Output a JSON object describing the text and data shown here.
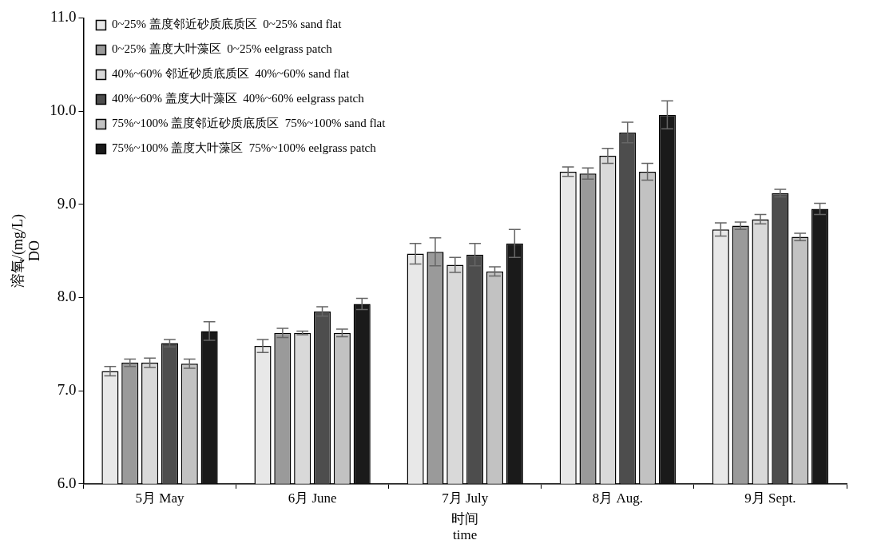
{
  "chart_data": {
    "type": "bar",
    "xlabel": "时间\ntime",
    "ylabel": "溶氧/(mg/L)\nDO",
    "categories": [
      "5月 May",
      "6月 June",
      "7月 July",
      "8月 Aug.",
      "9月 Sept."
    ],
    "ylim": [
      6,
      11
    ],
    "yticks": [
      {
        "value": 6,
        "label": "6.0"
      },
      {
        "value": 7,
        "label": "7.0"
      },
      {
        "value": 8,
        "label": "8.0"
      },
      {
        "value": 9,
        "label": "9.0"
      },
      {
        "value": 10,
        "label": "10.0"
      },
      {
        "value": 11,
        "label": "11.0"
      }
    ],
    "grid": false,
    "legend": "top left",
    "series": [
      {
        "name": "0~25% 盖度邻近砂质底质区  0~25% sand flat",
        "color": "#e8e8e8",
        "values": [
          7.21,
          7.48,
          8.47,
          9.35,
          8.73
        ],
        "errors": [
          0.05,
          0.07,
          0.11,
          0.05,
          0.07
        ]
      },
      {
        "name": "0~25% 盖度大叶藻区  0~25% eelgrass patch",
        "color": "#9a9a9a",
        "values": [
          7.3,
          7.62,
          8.49,
          9.33,
          8.77
        ],
        "errors": [
          0.04,
          0.05,
          0.15,
          0.06,
          0.04
        ]
      },
      {
        "name": "40%~60% 邻近砂质底质区  40%~60% sand flat",
        "color": "#d9d9d9",
        "values": [
          7.3,
          7.62,
          8.35,
          9.52,
          8.84
        ],
        "errors": [
          0.05,
          0.02,
          0.08,
          0.08,
          0.05
        ]
      },
      {
        "name": "40%~60% 盖度大叶藻区  40%~60% eelgrass patch",
        "color": "#4d4d4d",
        "values": [
          7.51,
          7.85,
          8.46,
          9.77,
          9.12
        ],
        "errors": [
          0.04,
          0.05,
          0.12,
          0.11,
          0.04
        ]
      },
      {
        "name": "75%~100% 盖度邻近砂质底质区  75%~100% sand flat",
        "color": "#c2c2c2",
        "values": [
          7.29,
          7.62,
          8.28,
          9.35,
          8.65
        ],
        "errors": [
          0.05,
          0.04,
          0.05,
          0.09,
          0.04
        ]
      },
      {
        "name": "75%~100% 盖度大叶藻区  75%~100% eelgrass patch",
        "color": "#1a1a1a",
        "values": [
          7.64,
          7.93,
          8.58,
          9.96,
          8.95
        ],
        "errors": [
          0.1,
          0.06,
          0.15,
          0.15,
          0.06
        ]
      }
    ]
  }
}
